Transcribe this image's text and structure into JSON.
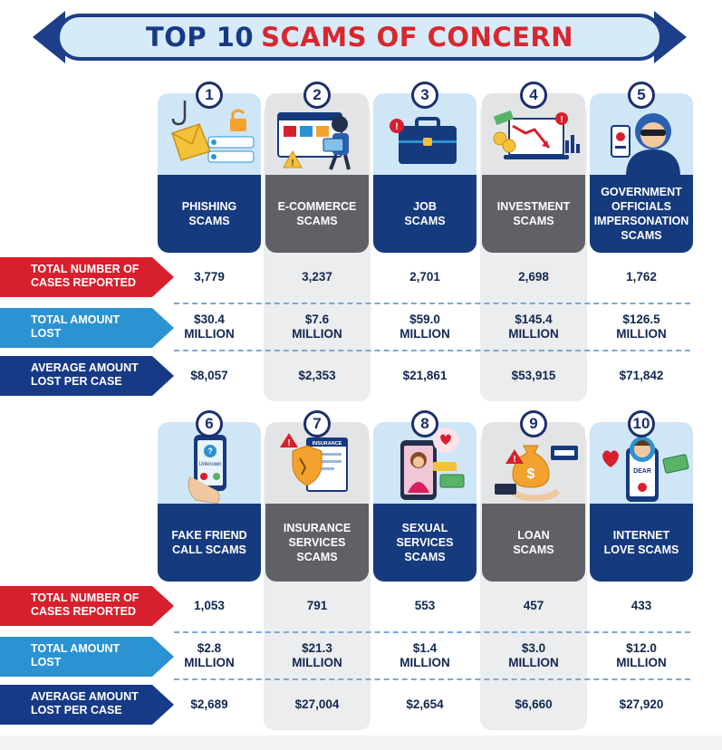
{
  "title": {
    "part1": "TOP 10",
    "part2": "SCAMS OF CONCERN"
  },
  "row_labels": {
    "cases": "TOTAL NUMBER OF\nCASES REPORTED",
    "amount": "TOTAL AMOUNT\nLOST",
    "average": "AVERAGE AMOUNT\nLOST PER CASE"
  },
  "colors": {
    "navy": "#163a7e",
    "grey": "#5f6166",
    "red": "#d81f2d",
    "light_blue": "#2b93d1",
    "title_red": "#d7272f",
    "tile_blue": "#cfe6f7",
    "tile_grey": "#e3e4e6"
  },
  "groups": [
    {
      "scams": [
        {
          "rank": "1",
          "name": "PHISHING\nSCAMS",
          "icon": "phishing-hook-envelope-icon",
          "cases": "3,779",
          "amount": "$30.4\nMILLION",
          "average": "$8,057"
        },
        {
          "rank": "2",
          "name": "E-COMMERCE\nSCAMS",
          "icon": "shopping-browser-thief-icon",
          "cases": "3,237",
          "amount": "$7.6\nMILLION",
          "average": "$2,353"
        },
        {
          "rank": "3",
          "name": "JOB\nSCAMS",
          "icon": "briefcase-icon",
          "cases": "2,701",
          "amount": "$59.0\nMILLION",
          "average": "$21,861"
        },
        {
          "rank": "4",
          "name": "INVESTMENT\nSCAMS",
          "icon": "falling-chart-money-icon",
          "cases": "2,698",
          "amount": "$145.4\nMILLION",
          "average": "$53,915"
        },
        {
          "rank": "5",
          "name": "GOVERNMENT\nOFFICIALS\nIMPERSONATION\nSCAMS",
          "icon": "masked-impostor-icon",
          "cases": "1,762",
          "amount": "$126.5\nMILLION",
          "average": "$71,842"
        }
      ]
    },
    {
      "scams": [
        {
          "rank": "6",
          "name": "FAKE FRIEND\nCALL SCAMS",
          "icon": "phone-call-icon",
          "cases": "1,053",
          "amount": "$2.8\nMILLION",
          "average": "$2,689"
        },
        {
          "rank": "7",
          "name": "INSURANCE\nSERVICES\nSCAMS",
          "icon": "insurance-document-icon",
          "cases": "791",
          "amount": "$21.3\nMILLION",
          "average": "$27,004"
        },
        {
          "rank": "8",
          "name": "SEXUAL\nSERVICES\nSCAMS",
          "icon": "phone-woman-money-icon",
          "cases": "553",
          "amount": "$1.4\nMILLION",
          "average": "$2,654"
        },
        {
          "rank": "9",
          "name": "LOAN\nSCAMS",
          "icon": "money-bag-hand-icon",
          "cases": "457",
          "amount": "$3.0\nMILLION",
          "average": "$6,660"
        },
        {
          "rank": "10",
          "name": "INTERNET\nLOVE SCAMS",
          "icon": "heart-phone-avatar-icon",
          "cases": "433",
          "amount": "$12.0\nMILLION",
          "average": "$27,920"
        }
      ]
    }
  ],
  "icon_texts": {
    "job": "",
    "insurance": "INSURANCE",
    "love_phone": "DEAR",
    "caller_id": "Unknown"
  }
}
